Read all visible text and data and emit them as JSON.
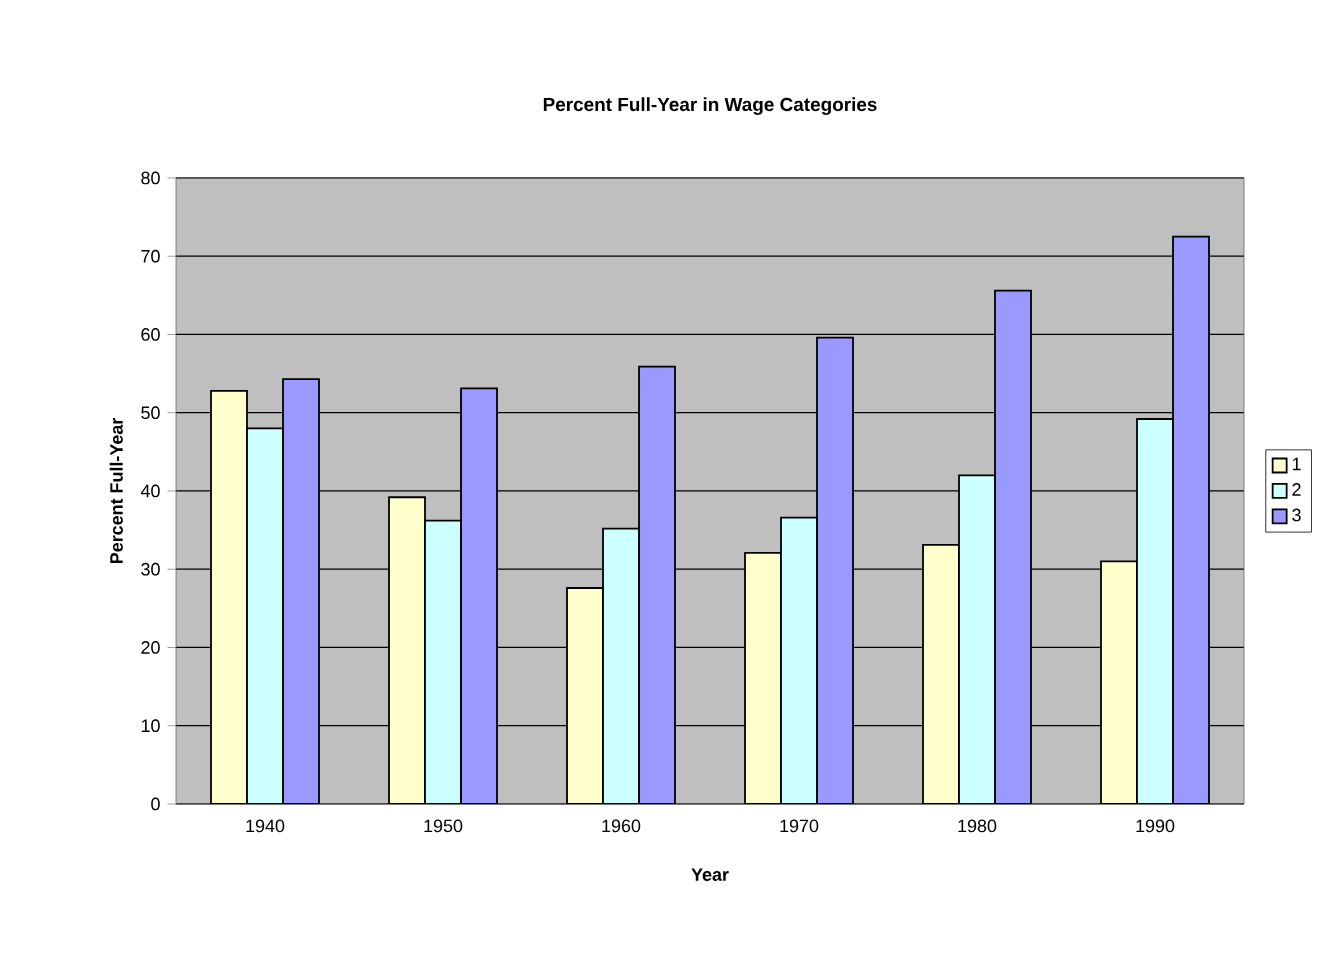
{
  "chart_data": {
    "type": "bar",
    "title": "Percent Full-Year in Wage Categories",
    "xlabel": "Year",
    "ylabel": "Percent Full-Year",
    "categories": [
      "1940",
      "1950",
      "1960",
      "1970",
      "1980",
      "1990"
    ],
    "series": [
      {
        "name": "1",
        "color": "#ffffcc",
        "values": [
          52.8,
          39.2,
          27.6,
          32.1,
          33.1,
          31.0
        ]
      },
      {
        "name": "2",
        "color": "#ccffff",
        "values": [
          48.0,
          36.2,
          35.2,
          36.6,
          42.0,
          49.2
        ]
      },
      {
        "name": "3",
        "color": "#9999ff",
        "values": [
          54.3,
          53.1,
          55.9,
          59.6,
          65.6,
          72.5
        ]
      }
    ],
    "ylim": [
      0,
      80
    ],
    "yticks": [
      0,
      10,
      20,
      30,
      40,
      50,
      60,
      70,
      80
    ],
    "grid": "y",
    "legend": "right"
  }
}
